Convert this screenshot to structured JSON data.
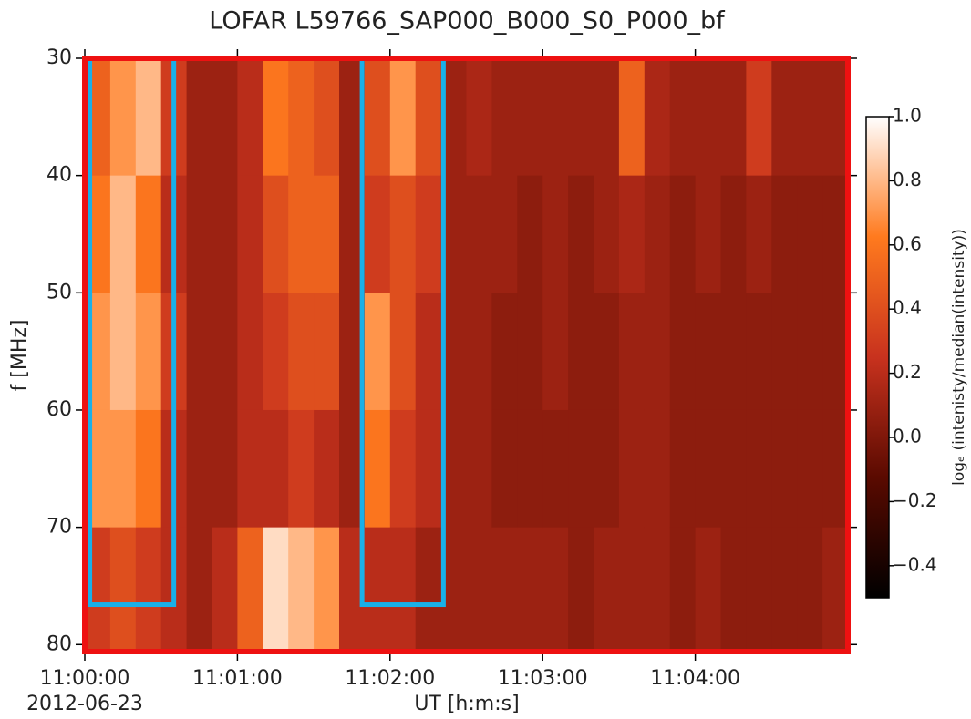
{
  "chart_data": {
    "type": "heatmap",
    "title": "LOFAR  L59766_SAP000_B000_S0_P000_bf",
    "xlabel": "UT [h:m:s]",
    "date_label": "2012-06-23",
    "ylabel": "f [MHz]",
    "colorbar_label": "logₑ (intenisty/median(intensity))",
    "xlim": [
      0,
      300
    ],
    "xticks": [
      {
        "value": 0,
        "label": "11:00:00"
      },
      {
        "value": 60,
        "label": "11:01:00"
      },
      {
        "value": 120,
        "label": "11:02:00"
      },
      {
        "value": 180,
        "label": "11:03:00"
      },
      {
        "value": 240,
        "label": "11:04:00"
      }
    ],
    "ylim": [
      30,
      80.6
    ],
    "y_inverted": true,
    "yticks": [
      30,
      40,
      50,
      60,
      70,
      80
    ],
    "clim": [
      -0.5,
      1.0
    ],
    "cticks": [
      {
        "value": -0.4,
        "label": "−0.4"
      },
      {
        "value": -0.2,
        "label": "−0.2"
      },
      {
        "value": 0,
        "label": "0.0"
      },
      0.2,
      0.4,
      0.6,
      0.8,
      {
        "value": 1.0,
        "label": "1.0"
      }
    ],
    "colormap": [
      "#000000",
      "#5a0a00",
      "#c8321e",
      "#ff7a1e",
      "#ffffff"
    ],
    "frame_color": "#ee1111",
    "x_edges": [
      0,
      10,
      20,
      30,
      40,
      50,
      60,
      70,
      80,
      90,
      100,
      110,
      120,
      130,
      140,
      150,
      160,
      170,
      180,
      190,
      200,
      210,
      220,
      230,
      240,
      250,
      260,
      270,
      280,
      290,
      300
    ],
    "y_edges": [
      30,
      40,
      50,
      60,
      70,
      80.6
    ],
    "z": [
      [
        0.5,
        0.6,
        0.7,
        0.7,
        0.3
      ],
      [
        0.7,
        0.8,
        0.8,
        0.7,
        0.4
      ],
      [
        0.8,
        0.6,
        0.7,
        0.6,
        0.3
      ],
      [
        0.3,
        0.2,
        0.3,
        0.2,
        0.2
      ],
      [
        0.1,
        0.1,
        0.1,
        0.1,
        0.1
      ],
      [
        0.1,
        0.1,
        0.1,
        0.1,
        0.2
      ],
      [
        0.2,
        0.2,
        0.2,
        0.2,
        0.5
      ],
      [
        0.6,
        0.4,
        0.3,
        0.2,
        0.9
      ],
      [
        0.5,
        0.5,
        0.4,
        0.3,
        0.8
      ],
      [
        0.4,
        0.5,
        0.4,
        0.2,
        0.7
      ],
      [
        0.1,
        0.1,
        0.1,
        0.1,
        0.2
      ],
      [
        0.4,
        0.3,
        0.7,
        0.6,
        0.2
      ],
      [
        0.7,
        0.4,
        0.4,
        0.3,
        0.2
      ],
      [
        0.4,
        0.3,
        0.2,
        0.2,
        0.1
      ],
      [
        0.1,
        0.1,
        0.1,
        0.1,
        0.1
      ],
      [
        0.15,
        0.1,
        0.1,
        0.1,
        0.1
      ],
      [
        0.1,
        0.1,
        0.05,
        0.05,
        0.1
      ],
      [
        0.1,
        0.05,
        0.05,
        0.05,
        0.1
      ],
      [
        0.1,
        0.1,
        0.1,
        0.05,
        0.1
      ],
      [
        0.1,
        0.05,
        0.05,
        0.05,
        0.05
      ],
      [
        0.1,
        0.1,
        0.05,
        0.05,
        0.1
      ],
      [
        0.5,
        0.15,
        0.1,
        0.1,
        0.1
      ],
      [
        0.15,
        0.1,
        0.1,
        0.1,
        0.1
      ],
      [
        0.1,
        0.05,
        0.05,
        0.05,
        0.05
      ],
      [
        0.1,
        0.1,
        0.05,
        0.05,
        0.1
      ],
      [
        0.1,
        0.05,
        0.05,
        0.05,
        0.05
      ],
      [
        0.3,
        0.1,
        0.05,
        0.05,
        0.05
      ],
      [
        0.1,
        0.05,
        0.05,
        0.05,
        0.05
      ],
      [
        0.1,
        0.05,
        0.05,
        0.05,
        0.05
      ],
      [
        0.1,
        0.05,
        0.05,
        0.05,
        0.1
      ]
    ],
    "boxes": [
      {
        "x0": 2,
        "x1": 35,
        "y0": 30,
        "y1": 76.6,
        "color": "#1ab0e8"
      },
      {
        "x0": 109,
        "x1": 141,
        "y0": 30,
        "y1": 76.6,
        "color": "#1ab0e8"
      }
    ]
  }
}
